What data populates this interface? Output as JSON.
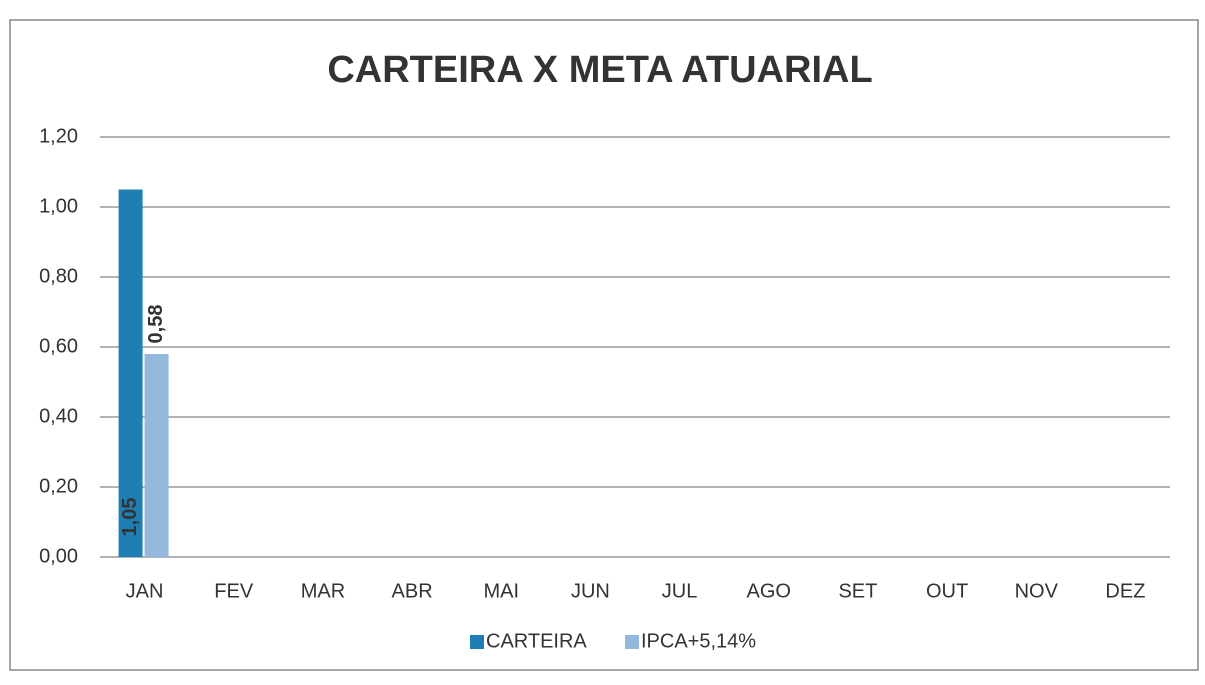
{
  "chart_data": {
    "type": "bar",
    "title": "CARTEIRA X META ATUARIAL",
    "categories": [
      "JAN",
      "FEV",
      "MAR",
      "ABR",
      "MAI",
      "JUN",
      "JUL",
      "AGO",
      "SET",
      "OUT",
      "NOV",
      "DEZ"
    ],
    "series": [
      {
        "name": "CARTEIRA",
        "color": "#1f7fb5",
        "values": [
          1.05,
          null,
          null,
          null,
          null,
          null,
          null,
          null,
          null,
          null,
          null,
          null
        ],
        "value_labels": [
          "1,05",
          null,
          null,
          null,
          null,
          null,
          null,
          null,
          null,
          null,
          null,
          null
        ]
      },
      {
        "name": "IPCA+5,14%",
        "color": "#93b8dc",
        "values": [
          0.58,
          null,
          null,
          null,
          null,
          null,
          null,
          null,
          null,
          null,
          null,
          null
        ],
        "value_labels": [
          "0,58",
          null,
          null,
          null,
          null,
          null,
          null,
          null,
          null,
          null,
          null,
          null
        ]
      }
    ],
    "ylim": [
      0,
      1.2
    ],
    "yticks": [
      {
        "value": 0,
        "label": "0,00"
      },
      {
        "value": 0.2,
        "label": "0,20"
      },
      {
        "value": 0.4,
        "label": "0,40"
      },
      {
        "value": 0.6,
        "label": "0,60"
      },
      {
        "value": 0.8,
        "label": "0,80"
      },
      {
        "value": 1.0,
        "label": "1,00"
      },
      {
        "value": 1.2,
        "label": "1,20"
      }
    ],
    "grid": true,
    "legend": "bottom"
  }
}
